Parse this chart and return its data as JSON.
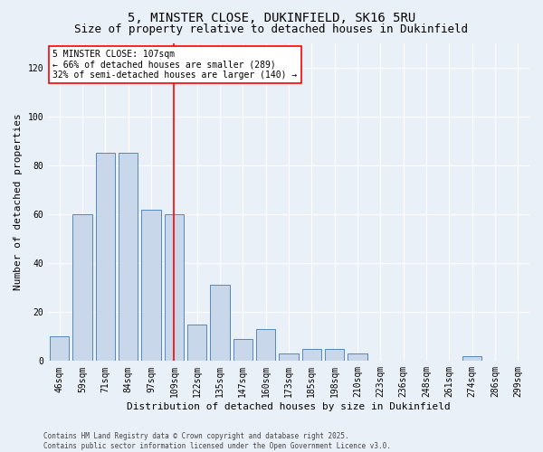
{
  "title": "5, MINSTER CLOSE, DUKINFIELD, SK16 5RU",
  "subtitle": "Size of property relative to detached houses in Dukinfield",
  "xlabel": "Distribution of detached houses by size in Dukinfield",
  "ylabel": "Number of detached properties",
  "categories": [
    "46sqm",
    "59sqm",
    "71sqm",
    "84sqm",
    "97sqm",
    "109sqm",
    "122sqm",
    "135sqm",
    "147sqm",
    "160sqm",
    "173sqm",
    "185sqm",
    "198sqm",
    "210sqm",
    "223sqm",
    "236sqm",
    "248sqm",
    "261sqm",
    "274sqm",
    "286sqm",
    "299sqm"
  ],
  "values": [
    10,
    60,
    85,
    85,
    62,
    60,
    15,
    31,
    9,
    13,
    3,
    5,
    5,
    3,
    0,
    0,
    0,
    0,
    2,
    0,
    0
  ],
  "bar_color": "#c8d8ea",
  "bar_edge_color": "#5588bb",
  "background_color": "#eaf0f8",
  "vline_x": 5,
  "vline_color": "red",
  "annotation_text": "5 MINSTER CLOSE: 107sqm\n← 66% of detached houses are smaller (289)\n32% of semi-detached houses are larger (140) →",
  "annotation_box_color": "white",
  "annotation_box_edge": "red",
  "ylim": [
    0,
    130
  ],
  "yticks": [
    0,
    20,
    40,
    60,
    80,
    100,
    120
  ],
  "footer": "Contains HM Land Registry data © Crown copyright and database right 2025.\nContains public sector information licensed under the Open Government Licence v3.0.",
  "title_fontsize": 10,
  "subtitle_fontsize": 9,
  "ylabel_fontsize": 8,
  "xlabel_fontsize": 8,
  "tick_fontsize": 7,
  "footer_fontsize": 5.5
}
